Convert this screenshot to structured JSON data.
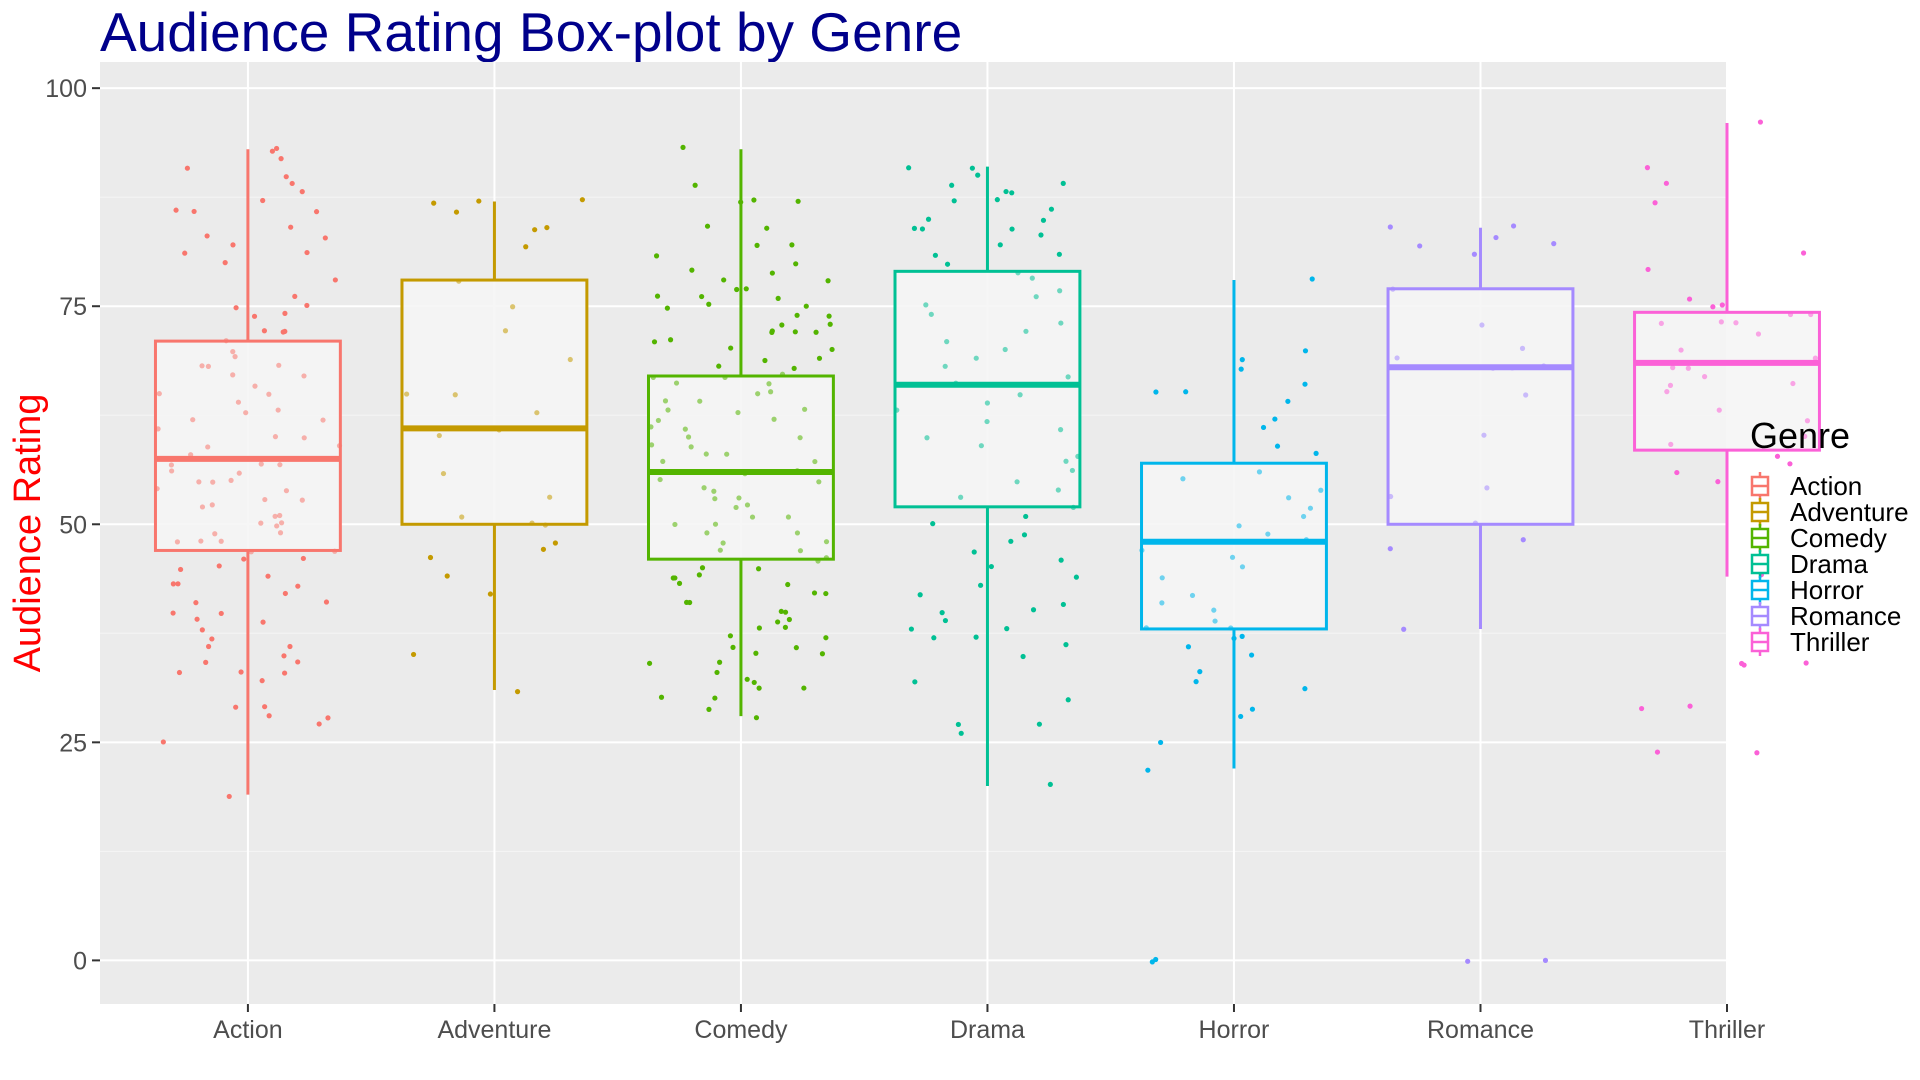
{
  "chart_data": {
    "type": "box",
    "title": "Audience Rating Box-plot by Genre",
    "xlabel": "",
    "ylabel": "Audience Rating",
    "ylim": [
      -5,
      103
    ],
    "y_ticks": [
      0,
      25,
      50,
      75,
      100
    ],
    "grid": true,
    "legend_title": "Genre",
    "legend_position": "right",
    "colors": {
      "title": "#00008B",
      "ylabel": "#FF0000",
      "panel": "#EBEBEB",
      "box_fill": "#F5F5F5"
    },
    "categories": [
      "Action",
      "Adventure",
      "Comedy",
      "Drama",
      "Horror",
      "Romance",
      "Thriller"
    ],
    "series": [
      {
        "name": "Action",
        "color": "#F8766D",
        "min": 19,
        "q1": 47,
        "median": 57.5,
        "q3": 71,
        "max": 93,
        "points": [
          93,
          93,
          92,
          91,
          90,
          89,
          88,
          87,
          86,
          86,
          86,
          84,
          83,
          83,
          82,
          81,
          81,
          80,
          78,
          76,
          75,
          75,
          74,
          74,
          72,
          72,
          72,
          71,
          70,
          69,
          68,
          68,
          68,
          67,
          67,
          66,
          65,
          65,
          64,
          63,
          63,
          62,
          62,
          61,
          60,
          60,
          59,
          59,
          58,
          57,
          57,
          57,
          56,
          56,
          55,
          55,
          55,
          54,
          54,
          53,
          53,
          52,
          52,
          51,
          51,
          50,
          50,
          50,
          49,
          49,
          48,
          48,
          48,
          47,
          47,
          46,
          46,
          45,
          45,
          44,
          43,
          43,
          43,
          42,
          41,
          41,
          40,
          40,
          39,
          39,
          38,
          37,
          36,
          36,
          35,
          34,
          34,
          33,
          33,
          33,
          32,
          29,
          29,
          28,
          28,
          27,
          25,
          19
        ]
      },
      {
        "name": "Adventure",
        "color": "#C49A00",
        "min": 31,
        "q1": 50,
        "median": 61,
        "q3": 78,
        "max": 87,
        "points": [
          87,
          87,
          87,
          86,
          84,
          84,
          82,
          78,
          75,
          72,
          69,
          65,
          65,
          63,
          61,
          60,
          56,
          53,
          51,
          50,
          50,
          48,
          47,
          46,
          44,
          42,
          35,
          31
        ]
      },
      {
        "name": "Comedy",
        "color": "#53B400",
        "min": 28,
        "q1": 46,
        "median": 56,
        "q3": 67,
        "max": 93,
        "points": [
          93,
          89,
          87,
          87,
          87,
          84,
          84,
          82,
          82,
          81,
          80,
          79,
          79,
          78,
          78,
          77,
          77,
          76,
          76,
          76,
          75,
          75,
          75,
          74,
          74,
          73,
          73,
          72,
          72,
          72,
          72,
          71,
          71,
          70,
          70,
          69,
          69,
          68,
          68,
          67,
          67,
          67,
          66,
          66,
          65,
          65,
          64,
          64,
          63,
          63,
          63,
          62,
          62,
          61,
          61,
          60,
          60,
          59,
          59,
          58,
          58,
          57,
          57,
          56,
          56,
          55,
          55,
          54,
          54,
          53,
          53,
          52,
          52,
          51,
          51,
          50,
          50,
          49,
          49,
          48,
          48,
          47,
          47,
          46,
          46,
          45,
          45,
          44,
          44,
          44,
          43,
          43,
          42,
          42,
          41,
          41,
          40,
          40,
          39,
          39,
          38,
          38,
          37,
          37,
          36,
          36,
          35,
          35,
          34,
          34,
          33,
          32,
          32,
          31,
          31,
          30,
          30,
          29,
          28
        ]
      },
      {
        "name": "Drama",
        "color": "#00C094",
        "min": 20,
        "q1": 52,
        "median": 66,
        "q3": 79,
        "max": 91,
        "points": [
          91,
          91,
          90,
          89,
          89,
          88,
          88,
          87,
          87,
          86,
          85,
          85,
          84,
          84,
          84,
          83,
          82,
          81,
          81,
          80,
          79,
          78,
          77,
          76,
          75,
          74,
          73,
          72,
          71,
          70,
          69,
          68,
          67,
          66,
          65,
          64,
          63,
          62,
          61,
          60,
          59,
          58,
          57,
          56,
          55,
          54,
          53,
          52,
          51,
          50,
          49,
          48,
          47,
          46,
          45,
          44,
          43,
          42,
          41,
          40,
          40,
          39,
          38,
          38,
          37,
          37,
          36,
          35,
          32,
          30,
          27,
          27,
          26,
          20
        ]
      },
      {
        "name": "Horror",
        "color": "#00B6EB",
        "min": 22,
        "q1": 38,
        "median": 48,
        "q3": 57,
        "max": 78,
        "points": [
          78,
          70,
          69,
          68,
          66,
          65,
          65,
          64,
          62,
          61,
          59,
          58,
          56,
          55,
          54,
          53,
          52,
          51,
          50,
          49,
          48,
          47,
          46,
          45,
          44,
          42,
          41,
          40,
          39,
          38,
          38,
          37,
          37,
          36,
          35,
          33,
          32,
          31,
          29,
          28,
          25,
          22,
          0,
          0
        ]
      },
      {
        "name": "Romance",
        "color": "#A58AFF",
        "min": 38,
        "q1": 50,
        "median": 68,
        "q3": 77,
        "max": 84,
        "points": [
          84,
          84,
          83,
          82,
          82,
          81,
          77,
          73,
          70,
          69,
          68,
          68,
          68,
          65,
          60,
          54,
          53,
          50,
          48,
          47,
          38,
          0,
          0
        ]
      },
      {
        "name": "Thriller",
        "color": "#FB61D7",
        "min": 44,
        "q1": 58.5,
        "median": 68.5,
        "q3": 74.3,
        "max": 96,
        "points": [
          96,
          91,
          89,
          87,
          81,
          79,
          76,
          75,
          75,
          74,
          74,
          73,
          73,
          73,
          72,
          70,
          69,
          68,
          68,
          67,
          66,
          66,
          65,
          63,
          62,
          60,
          59,
          58,
          57,
          56,
          55,
          44,
          34,
          34,
          34,
          29,
          29,
          24,
          24
        ]
      }
    ]
  }
}
